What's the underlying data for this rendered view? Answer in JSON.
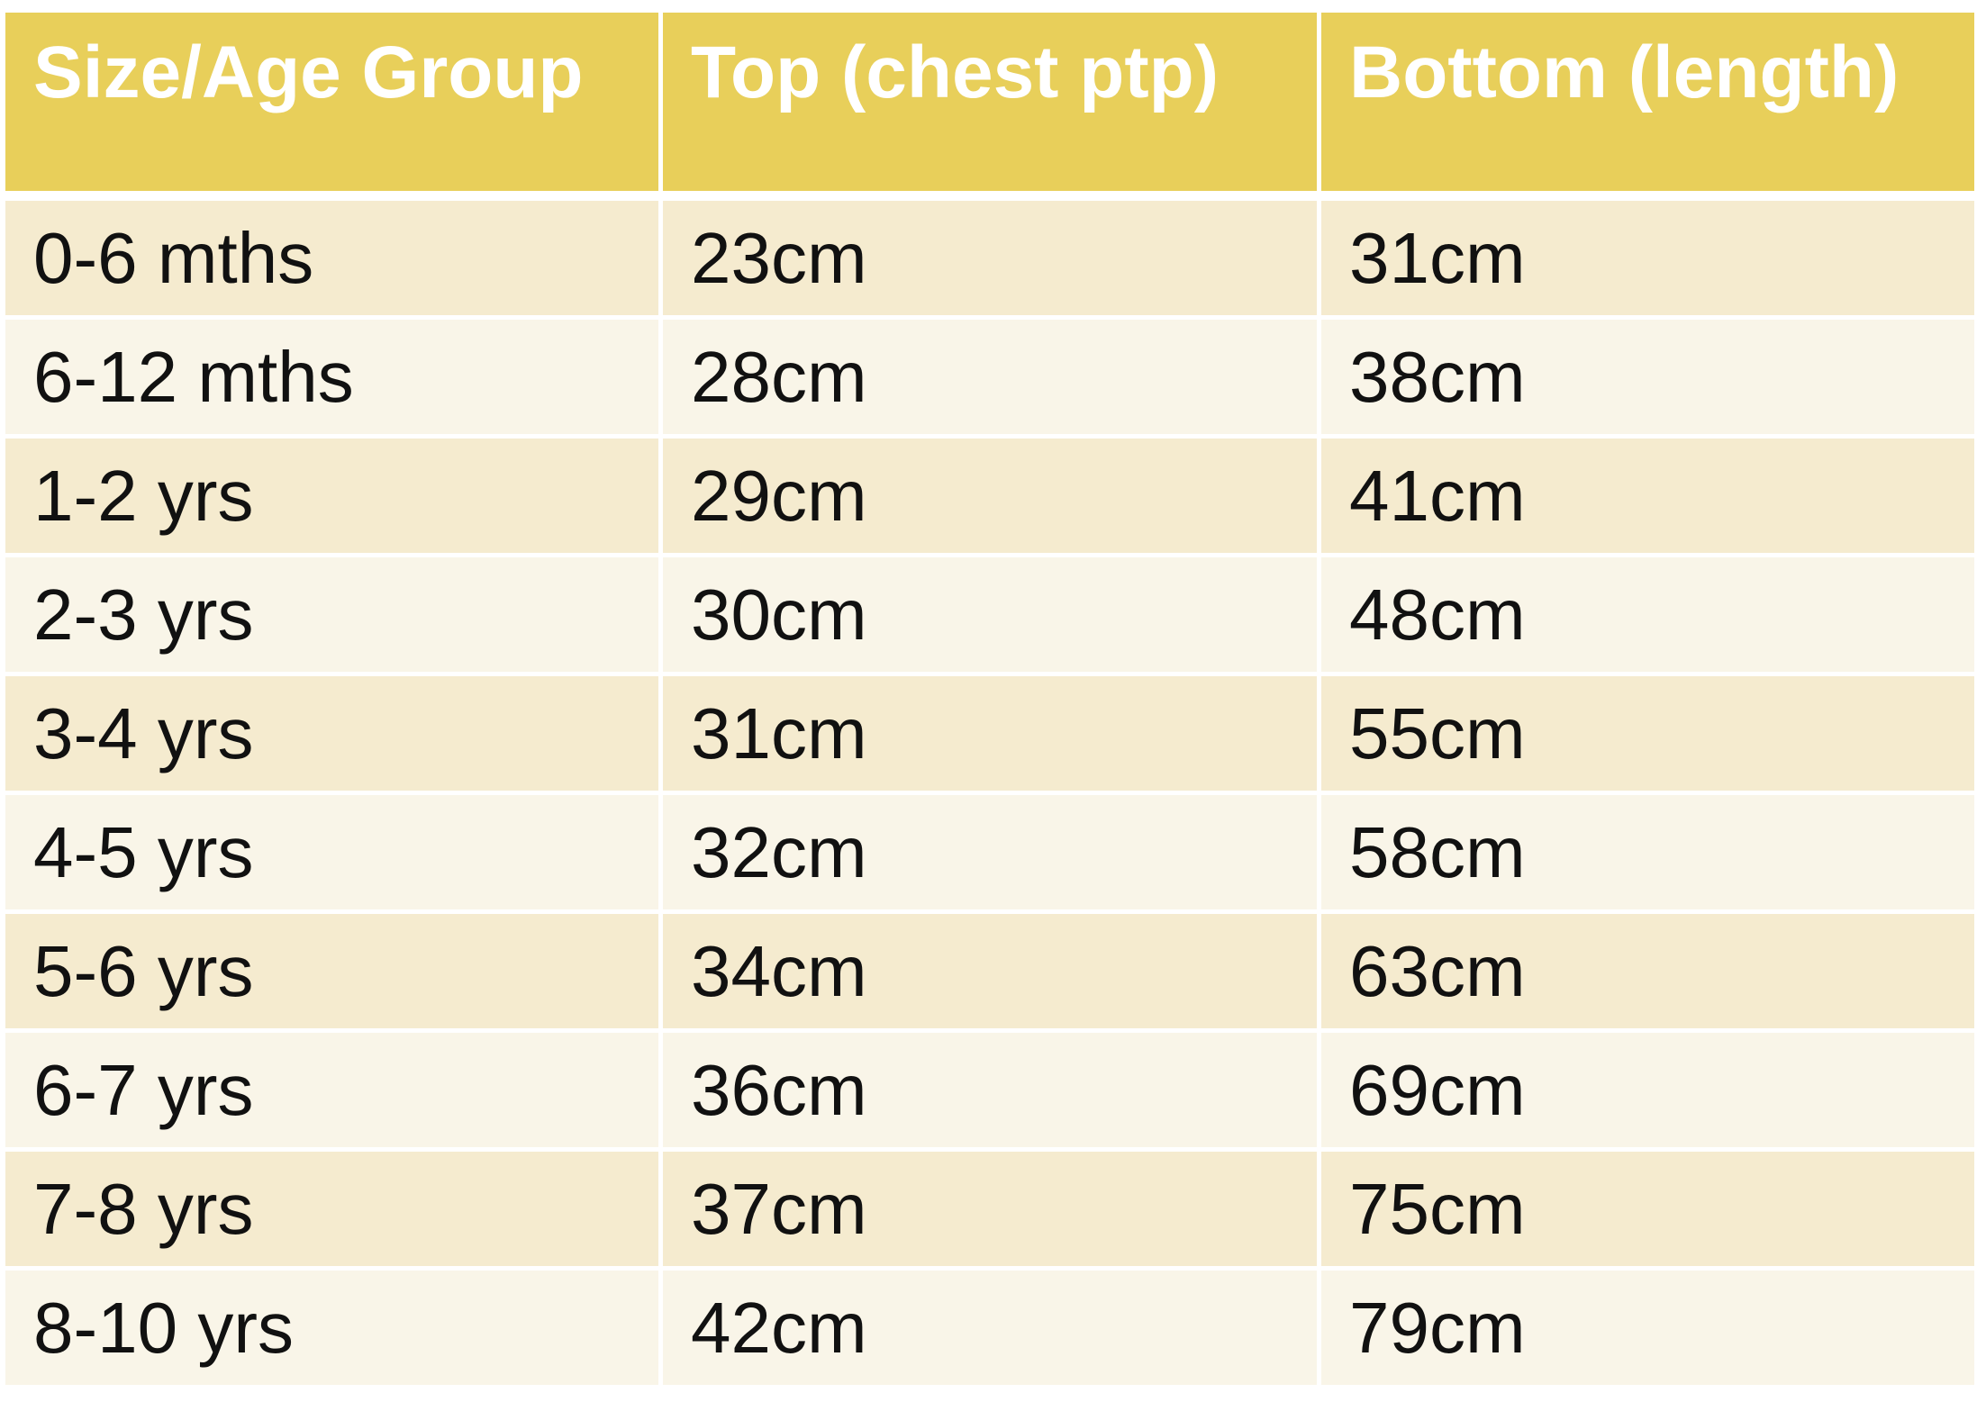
{
  "table": {
    "header": [
      "Size/Age Group",
      "Top (chest ptp)",
      "Bottom (length)"
    ],
    "rows": [
      [
        "0-6 mths",
        "23cm",
        "31cm"
      ],
      [
        "6-12 mths",
        "28cm",
        "38cm"
      ],
      [
        "1-2 yrs",
        "29cm",
        "41cm"
      ],
      [
        "2-3 yrs",
        "30cm",
        "48cm"
      ],
      [
        "3-4 yrs",
        "31cm",
        "55cm"
      ],
      [
        "4-5 yrs",
        "32cm",
        "58cm"
      ],
      [
        "5-6 yrs",
        "34cm",
        "63cm"
      ],
      [
        "6-7 yrs",
        "36cm",
        "69cm"
      ],
      [
        "7-8 yrs",
        "37cm",
        "75cm"
      ],
      [
        "8-10 yrs",
        "42cm",
        "79cm"
      ]
    ]
  }
}
